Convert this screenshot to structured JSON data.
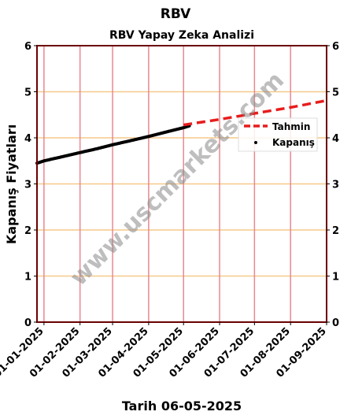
{
  "chart_data": {
    "type": "line",
    "title": "RBV",
    "subtitle": "RBV Yapay Zeka Analizi",
    "xlabel": "Tarih 06-05-2025",
    "ylabel": "Kapanış Fiyatları",
    "ylim": [
      0,
      6
    ],
    "xlim": [
      "2024-12-26",
      "2025-09-01"
    ],
    "yticks": [
      "0",
      "1",
      "2",
      "3",
      "4",
      "5",
      "6"
    ],
    "xticks": [
      "01-01-2025",
      "01-02-2025",
      "01-03-2025",
      "01-04-2025",
      "01-05-2025",
      "01-06-2025",
      "01-07-2025",
      "01-08-2025",
      "01-09-2025"
    ],
    "xtick_dates": [
      "2025-01-01",
      "2025-02-01",
      "2025-03-01",
      "2025-04-01",
      "2025-05-01",
      "2025-06-01",
      "2025-07-01",
      "2025-08-01",
      "2025-09-01"
    ],
    "grid": true,
    "legend_position": "upper-right",
    "series": [
      {
        "name": "Tahmin",
        "style": "dashed-line",
        "color": "#e81c1c",
        "x": [
          "2025-05-01",
          "2025-06-01",
          "2025-07-01",
          "2025-08-01",
          "2025-09-01"
        ],
        "y": [
          4.28,
          4.4,
          4.53,
          4.66,
          4.81
        ]
      },
      {
        "name": "Kapanış",
        "style": "markers",
        "color": "#000000",
        "x": [
          "2024-12-26",
          "2025-01-01",
          "2025-01-15",
          "2025-02-01",
          "2025-02-15",
          "2025-03-01",
          "2025-03-15",
          "2025-04-01",
          "2025-04-15",
          "2025-05-01",
          "2025-05-06"
        ],
        "y": [
          3.45,
          3.5,
          3.58,
          3.68,
          3.76,
          3.85,
          3.93,
          4.03,
          4.12,
          4.22,
          4.26
        ]
      }
    ],
    "watermark": "www.uscmarkets.com",
    "colors": {
      "vertical_grid": "#e8898f",
      "horizontal_grid": "#f5c98a",
      "frame": "#6b0000"
    }
  }
}
